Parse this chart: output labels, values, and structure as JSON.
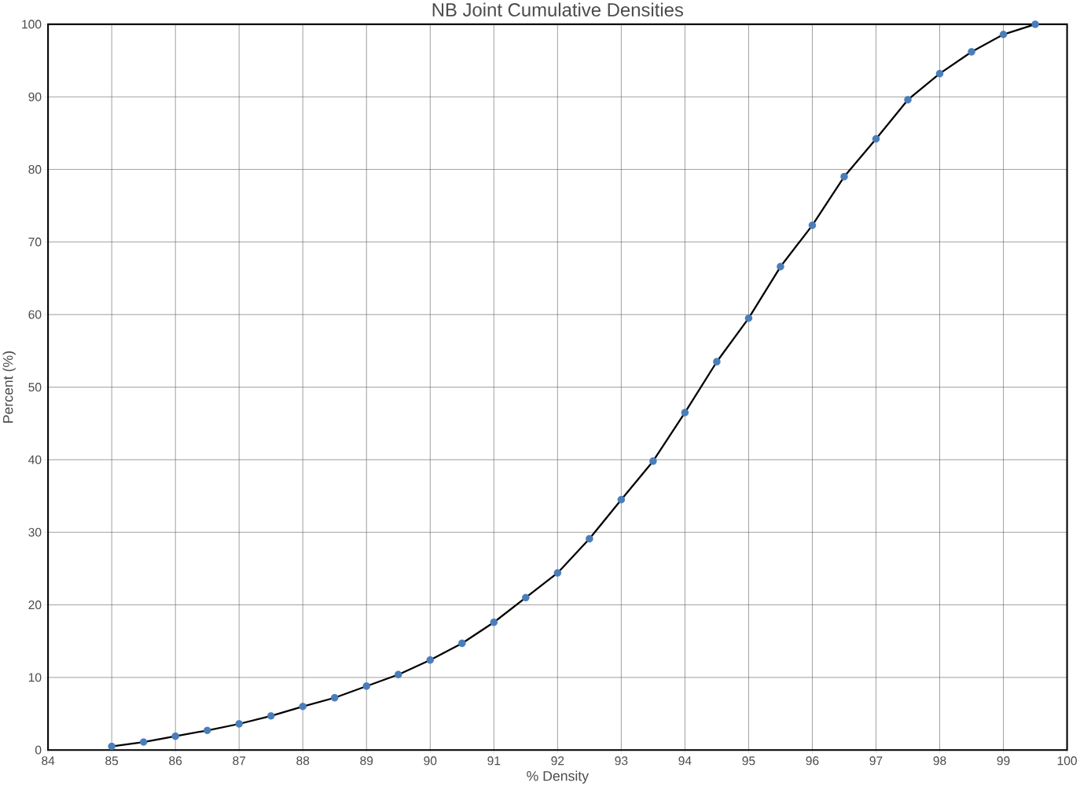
{
  "chart_data": {
    "type": "line",
    "title": "NB Joint Cumulative Densities",
    "xlabel": "% Density",
    "ylabel": "Percent (%)",
    "x": [
      85,
      85.5,
      86,
      86.5,
      87,
      87.5,
      88,
      88.5,
      89,
      89.5,
      90,
      90.5,
      91,
      91.5,
      92,
      92.5,
      93,
      93.5,
      94,
      94.5,
      95,
      95.5,
      96,
      96.5,
      97,
      97.5,
      98,
      98.5,
      99,
      99.5
    ],
    "series": [
      {
        "color": "#4a7ebb",
        "values": [
          0.5,
          1.1,
          1.9,
          2.7,
          3.6,
          4.7,
          6.0,
          7.2,
          8.8,
          10.4,
          12.4,
          14.7,
          17.6,
          21.0,
          24.4,
          29.1,
          34.5,
          39.8,
          46.5,
          53.5,
          59.5,
          66.6,
          72.3,
          79.0,
          84.2,
          89.6,
          93.2,
          96.2,
          98.6,
          100
        ]
      }
    ],
    "marker": "circle",
    "line_style": "solid",
    "grid": true,
    "xlim": [
      84,
      100
    ],
    "xticks": [
      84,
      85,
      86,
      87,
      88,
      89,
      90,
      91,
      92,
      93,
      94,
      95,
      96,
      97,
      98,
      99,
      100
    ],
    "ylim": [
      0,
      100
    ],
    "yticks": [
      0,
      10,
      20,
      30,
      40,
      50,
      60,
      70,
      80,
      90,
      100
    ]
  }
}
